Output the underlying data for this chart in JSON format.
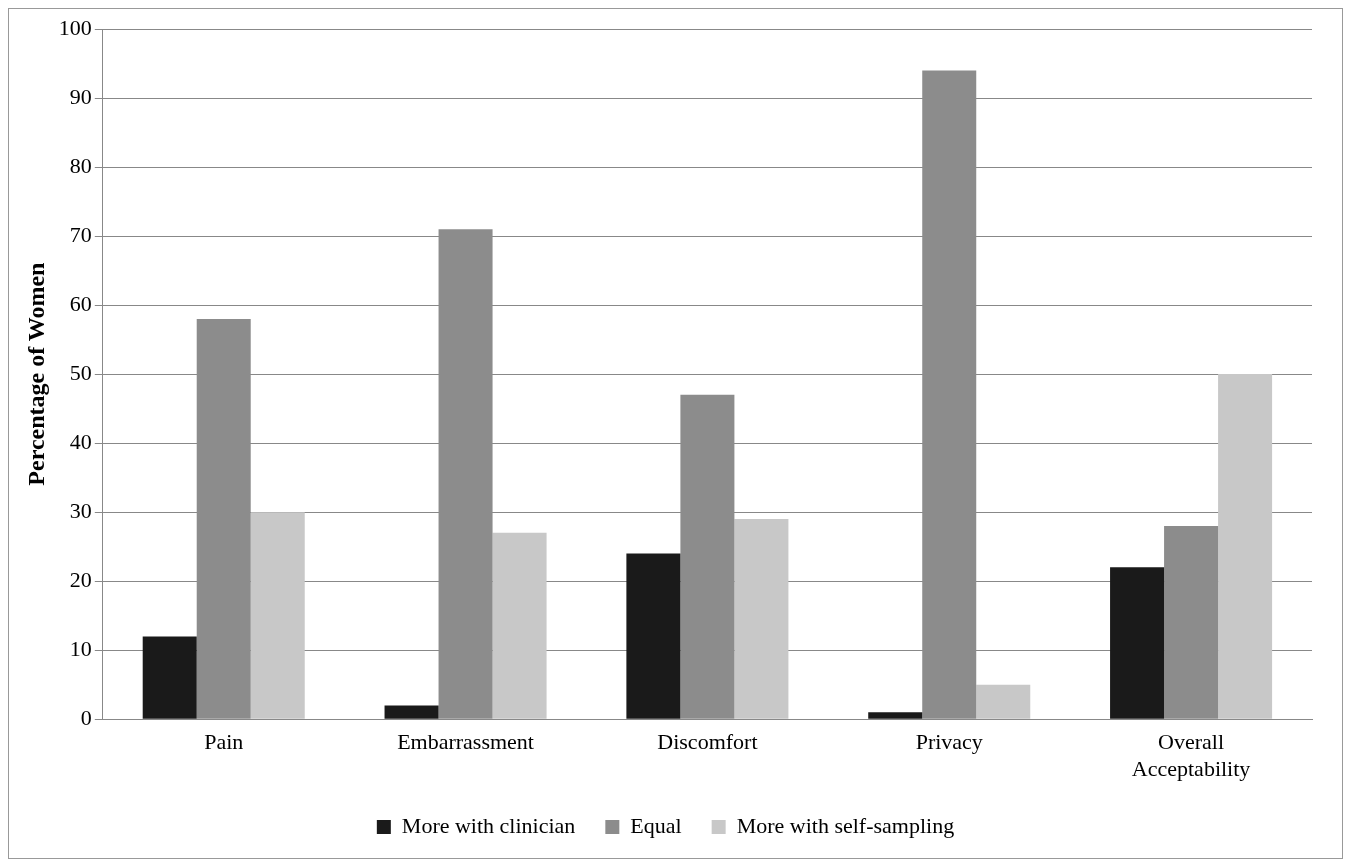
{
  "chart_data": {
    "type": "bar",
    "ylabel": "Percentage of Women",
    "categories": [
      "Pain",
      "Embarrassment",
      "Discomfort",
      "Privacy",
      "Overall Acceptability"
    ],
    "series": [
      {
        "name": "More with clinician",
        "color": "#1a1a1a",
        "values": [
          12,
          2,
          24,
          1,
          22
        ]
      },
      {
        "name": "Equal",
        "color": "#8c8c8c",
        "values": [
          58,
          71,
          47,
          94,
          28
        ]
      },
      {
        "name": "More with self-sampling",
        "color": "#c8c8c8",
        "values": [
          30,
          27,
          29,
          5,
          50
        ]
      }
    ],
    "ylim": [
      0,
      100
    ],
    "yticks": [
      0,
      10,
      20,
      30,
      40,
      50,
      60,
      70,
      80,
      90,
      100
    ],
    "grid": "y",
    "legend": "bottom"
  }
}
